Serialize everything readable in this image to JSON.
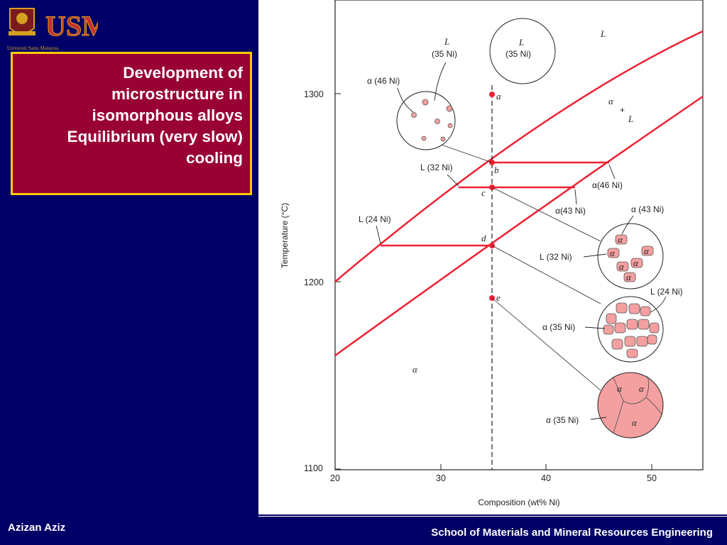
{
  "slide": {
    "title": "Development of microstructure in isomorphous alloys Equilibrium (very slow) cooling",
    "author": "Azizan Aziz",
    "footer": "School of Materials and Mineral Resources Engineering"
  },
  "logo": {
    "text": "USM",
    "subtext": "Universiti Sains Malaysia"
  },
  "colors": {
    "background": "#000066",
    "title_box": "#990033",
    "title_border": "#ffcc00",
    "phase_lines": "#ee2233",
    "grain_fill": "#f4a0a0"
  },
  "diagram": {
    "x_axis": {
      "label": "Composition (wt% Ni)",
      "ticks": [
        "20",
        "30",
        "40",
        "50"
      ]
    },
    "y_axis": {
      "label": "Temperature (°C)",
      "ticks": [
        "1300",
        "1200",
        "1100"
      ]
    },
    "regions": {
      "liquid": "L",
      "two_phase_alpha": "α",
      "two_phase_plus": "+",
      "two_phase_L": "L",
      "solid": "α"
    },
    "points": [
      "a",
      "b",
      "c",
      "d",
      "e"
    ],
    "annotations": {
      "L_35": "L",
      "L_35_comp": "(35 Ni)",
      "alpha_46_left": "α (46 Ni)",
      "L_32_left": "L (32 Ni)",
      "L_24_left": "L (24 Ni)",
      "alpha_46_right": "α(46 Ni)",
      "alpha_43_right": "α(43 Ni)",
      "alpha_43_circle": "α (43 Ni)",
      "L_32_circle": "L (32 Ni)",
      "L_24_circle": "L (24 Ni)",
      "alpha_35_d": "α (35 Ni)",
      "alpha_35_e": "α (35 Ni)"
    },
    "grain_symbol": "α"
  }
}
